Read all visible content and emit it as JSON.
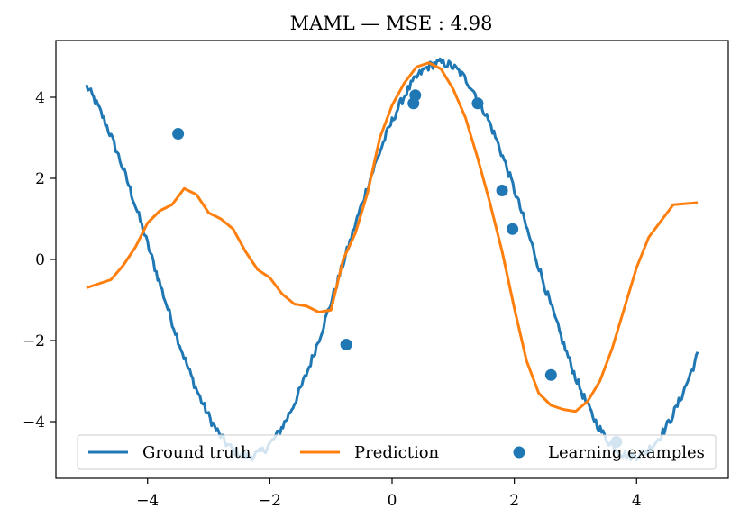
{
  "chart_data": {
    "type": "line",
    "title": "MAML — MSE : 4.98",
    "xlabel": "",
    "ylabel": "",
    "xlim": [
      -5.5,
      5.5
    ],
    "ylim": [
      -5.4,
      5.4
    ],
    "xticks": [
      -4,
      -2,
      0,
      2,
      4
    ],
    "yticks": [
      -4,
      -2,
      0,
      2,
      4
    ],
    "grid": false,
    "legend_placement": "lower-center",
    "series": [
      {
        "name": "Ground truth",
        "type": "line",
        "color": "#1f77b4",
        "amplitude": 4.85,
        "frequency": 1.0,
        "phase": 0.78,
        "x_range": [
          -5.0,
          5.0
        ]
      },
      {
        "name": "Prediction",
        "type": "line",
        "color": "#ff7f0e",
        "x": [
          -5.0,
          -4.6,
          -4.4,
          -4.2,
          -4.0,
          -3.8,
          -3.6,
          -3.4,
          -3.2,
          -3.0,
          -2.8,
          -2.6,
          -2.4,
          -2.2,
          -2.0,
          -1.8,
          -1.6,
          -1.4,
          -1.2,
          -1.0,
          -0.8,
          -0.6,
          -0.4,
          -0.2,
          0.0,
          0.2,
          0.4,
          0.6,
          0.8,
          1.0,
          1.2,
          1.4,
          1.6,
          1.8,
          2.0,
          2.2,
          2.4,
          2.6,
          2.8,
          3.0,
          3.2,
          3.4,
          3.6,
          3.8,
          4.0,
          4.2,
          4.4,
          4.6,
          5.0
        ],
        "y": [
          -0.7,
          -0.5,
          -0.15,
          0.3,
          0.9,
          1.2,
          1.35,
          1.75,
          1.6,
          1.15,
          1.0,
          0.75,
          0.2,
          -0.25,
          -0.45,
          -0.85,
          -1.1,
          -1.15,
          -1.3,
          -1.25,
          0.0,
          0.65,
          1.65,
          3.0,
          3.8,
          4.35,
          4.75,
          4.85,
          4.7,
          4.2,
          3.5,
          2.5,
          1.4,
          0.2,
          -1.2,
          -2.5,
          -3.3,
          -3.6,
          -3.7,
          -3.75,
          -3.5,
          -3.0,
          -2.2,
          -1.2,
          -0.2,
          0.55,
          0.95,
          1.35,
          1.4
        ]
      },
      {
        "name": "Learning examples",
        "type": "scatter",
        "color": "#1f77b4",
        "x": [
          -3.5,
          -0.75,
          0.35,
          0.38,
          1.4,
          1.8,
          1.97,
          2.6,
          3.67
        ],
        "y": [
          3.1,
          -2.1,
          3.85,
          4.05,
          3.85,
          1.7,
          0.75,
          -2.85,
          -4.5
        ]
      }
    ]
  }
}
